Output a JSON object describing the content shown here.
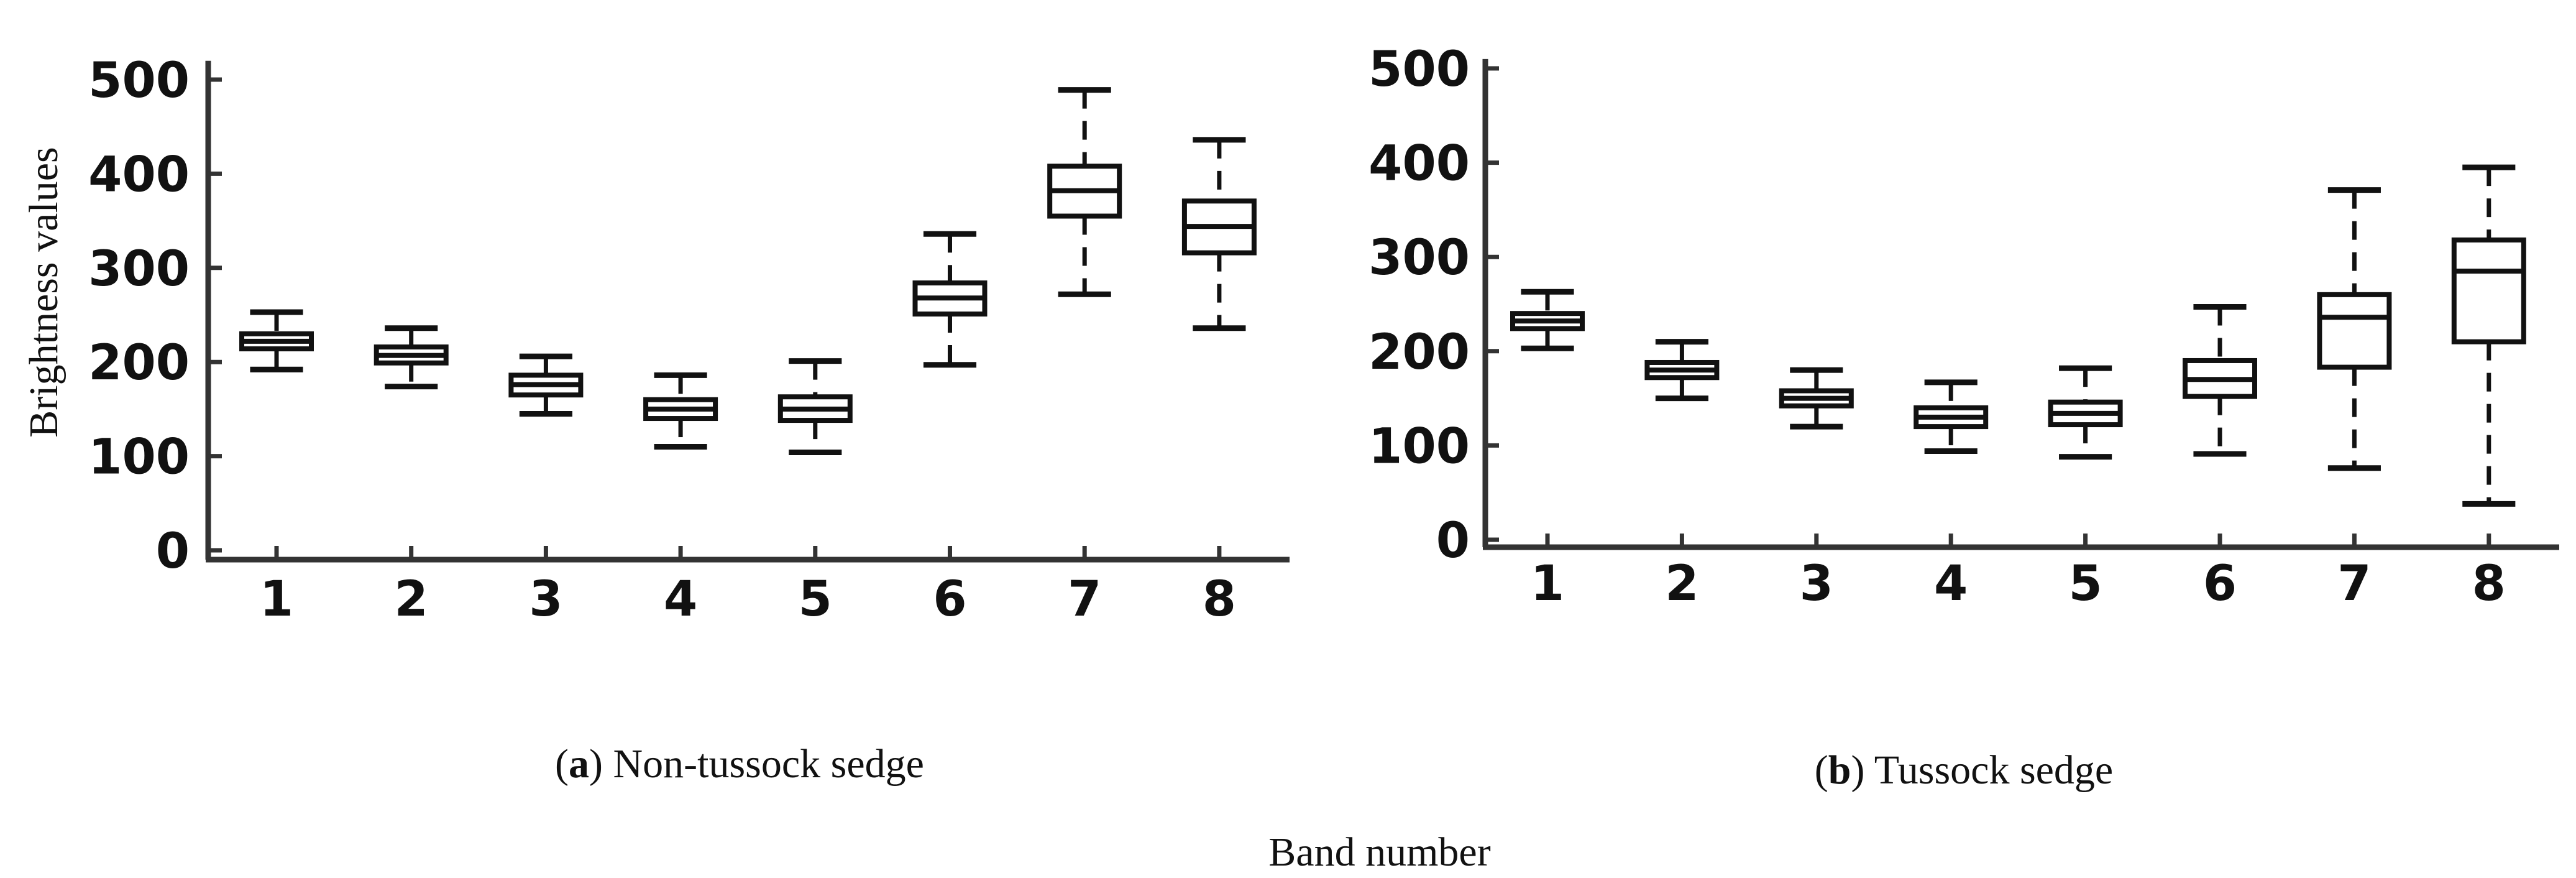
{
  "figure": {
    "ylabel": "Brightness values",
    "xlabel": "Band number"
  },
  "chart_data": [
    {
      "type": "box",
      "caption_letter": "a",
      "caption_text": "Non-tussock sedge",
      "ylabel": "Brightness values",
      "xlabel": "Band number",
      "ylim": [
        0,
        520
      ],
      "y_ticks": [
        0,
        100,
        200,
        300,
        400,
        500
      ],
      "categories": [
        "1",
        "2",
        "3",
        "4",
        "5",
        "6",
        "7",
        "8"
      ],
      "boxes": [
        {
          "band": "1",
          "min": 192,
          "q1": 214,
          "median": 222,
          "q3": 230,
          "max": 253
        },
        {
          "band": "2",
          "min": 174,
          "q1": 199,
          "median": 207,
          "q3": 216,
          "max": 236
        },
        {
          "band": "3",
          "min": 145,
          "q1": 165,
          "median": 176,
          "q3": 186,
          "max": 206
        },
        {
          "band": "4",
          "min": 110,
          "q1": 140,
          "median": 150,
          "q3": 160,
          "max": 186
        },
        {
          "band": "5",
          "min": 104,
          "q1": 138,
          "median": 150,
          "q3": 163,
          "max": 201
        },
        {
          "band": "6",
          "min": 197,
          "q1": 251,
          "median": 268,
          "q3": 284,
          "max": 336
        },
        {
          "band": "7",
          "min": 272,
          "q1": 355,
          "median": 382,
          "q3": 408,
          "max": 489
        },
        {
          "band": "8",
          "min": 236,
          "q1": 316,
          "median": 344,
          "q3": 371,
          "max": 436
        }
      ]
    },
    {
      "type": "box",
      "caption_letter": "b",
      "caption_text": "Tussock sedge",
      "ylabel": "",
      "xlabel": "",
      "ylim": [
        0,
        510
      ],
      "y_ticks": [
        0,
        100,
        200,
        300,
        400,
        500
      ],
      "categories": [
        "1",
        "2",
        "3",
        "4",
        "5",
        "6",
        "7",
        "8"
      ],
      "boxes": [
        {
          "band": "1",
          "min": 203,
          "q1": 224,
          "median": 232,
          "q3": 240,
          "max": 263
        },
        {
          "band": "2",
          "min": 150,
          "q1": 172,
          "median": 180,
          "q3": 188,
          "max": 210
        },
        {
          "band": "3",
          "min": 120,
          "q1": 142,
          "median": 150,
          "q3": 158,
          "max": 180
        },
        {
          "band": "4",
          "min": 94,
          "q1": 120,
          "median": 130,
          "q3": 140,
          "max": 167
        },
        {
          "band": "5",
          "min": 88,
          "q1": 122,
          "median": 134,
          "q3": 146,
          "max": 182
        },
        {
          "band": "6",
          "min": 91,
          "q1": 152,
          "median": 170,
          "q3": 190,
          "max": 247
        },
        {
          "band": "7",
          "min": 76,
          "q1": 183,
          "median": 236,
          "q3": 260,
          "max": 371
        },
        {
          "band": "8",
          "min": 38,
          "q1": 210,
          "median": 285,
          "q3": 318,
          "max": 395
        }
      ]
    }
  ]
}
